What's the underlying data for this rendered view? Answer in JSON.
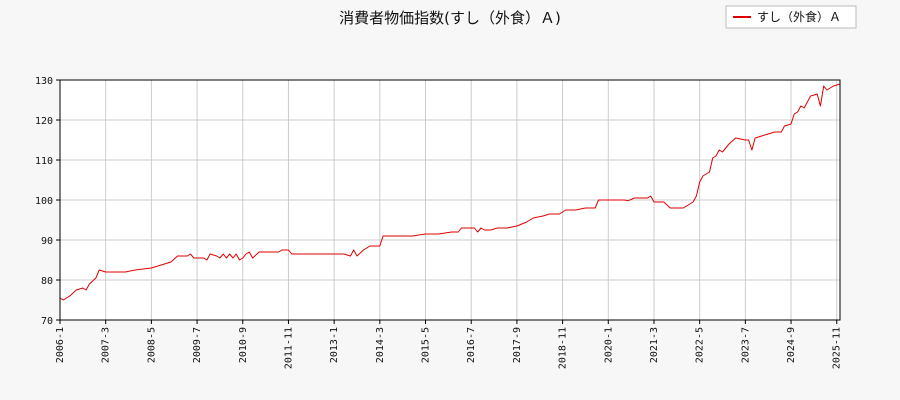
{
  "chart_data": {
    "type": "line",
    "title": "消費者物価指数(すし（外食）Ａ)",
    "xlabel": "",
    "ylabel": "",
    "ylim": [
      70,
      130
    ],
    "xlim": [
      "2006-01",
      "2025-12"
    ],
    "grid": true,
    "legend_position": "top-right",
    "y_ticks": [
      70,
      80,
      90,
      100,
      110,
      120,
      130
    ],
    "x_ticks": [
      "2006-1",
      "2007-3",
      "2008-5",
      "2009-7",
      "2010-9",
      "2011-11",
      "2013-1",
      "2014-3",
      "2015-5",
      "2016-7",
      "2017-9",
      "2018-11",
      "2020-1",
      "2021-3",
      "2022-5",
      "2023-7",
      "2024-9",
      "2025-11"
    ],
    "series": [
      {
        "name": "すし（外食）Ａ",
        "color": "#e00000",
        "points": [
          [
            "2006-01",
            75.5
          ],
          [
            "2006-02",
            75.0
          ],
          [
            "2006-04",
            76.0
          ],
          [
            "2006-06",
            77.5
          ],
          [
            "2006-08",
            78.0
          ],
          [
            "2006-09",
            77.5
          ],
          [
            "2006-10",
            79.0
          ],
          [
            "2006-12",
            80.5
          ],
          [
            "2007-01",
            82.5
          ],
          [
            "2007-03",
            82.0
          ],
          [
            "2007-06",
            82.0
          ],
          [
            "2007-09",
            82.0
          ],
          [
            "2007-12",
            82.5
          ],
          [
            "2008-05",
            83.0
          ],
          [
            "2008-07",
            83.5
          ],
          [
            "2008-09",
            84.0
          ],
          [
            "2008-11",
            84.5
          ],
          [
            "2009-01",
            86.0
          ],
          [
            "2009-04",
            86.0
          ],
          [
            "2009-05",
            86.5
          ],
          [
            "2009-06",
            85.5
          ],
          [
            "2009-07",
            85.5
          ],
          [
            "2009-09",
            85.5
          ],
          [
            "2009-10",
            85.0
          ],
          [
            "2009-11",
            86.5
          ],
          [
            "2010-01",
            86.0
          ],
          [
            "2010-02",
            85.5
          ],
          [
            "2010-03",
            86.5
          ],
          [
            "2010-04",
            85.5
          ],
          [
            "2010-05",
            86.5
          ],
          [
            "2010-06",
            85.5
          ],
          [
            "2010-07",
            86.5
          ],
          [
            "2010-08",
            85.0
          ],
          [
            "2010-09",
            85.5
          ],
          [
            "2010-10",
            86.5
          ],
          [
            "2010-11",
            87.0
          ],
          [
            "2010-12",
            85.5
          ],
          [
            "2011-02",
            87.0
          ],
          [
            "2011-05",
            87.0
          ],
          [
            "2011-08",
            87.0
          ],
          [
            "2011-09",
            87.5
          ],
          [
            "2011-11",
            87.5
          ],
          [
            "2011-12",
            86.5
          ],
          [
            "2012-04",
            86.5
          ],
          [
            "2012-08",
            86.5
          ],
          [
            "2013-01",
            86.5
          ],
          [
            "2013-04",
            86.5
          ],
          [
            "2013-06",
            86.0
          ],
          [
            "2013-07",
            87.5
          ],
          [
            "2013-08",
            86.0
          ],
          [
            "2013-10",
            87.5
          ],
          [
            "2013-12",
            88.5
          ],
          [
            "2014-03",
            88.5
          ],
          [
            "2014-04",
            91.0
          ],
          [
            "2014-09",
            91.0
          ],
          [
            "2015-01",
            91.0
          ],
          [
            "2015-05",
            91.5
          ],
          [
            "2015-09",
            91.5
          ],
          [
            "2016-01",
            92.0
          ],
          [
            "2016-03",
            92.0
          ],
          [
            "2016-04",
            93.0
          ],
          [
            "2016-08",
            93.0
          ],
          [
            "2016-09",
            92.0
          ],
          [
            "2016-10",
            93.0
          ],
          [
            "2016-11",
            92.5
          ],
          [
            "2017-01",
            92.5
          ],
          [
            "2017-03",
            93.0
          ],
          [
            "2017-06",
            93.0
          ],
          [
            "2017-09",
            93.5
          ],
          [
            "2017-12",
            94.5
          ],
          [
            "2018-02",
            95.5
          ],
          [
            "2018-05",
            96.0
          ],
          [
            "2018-07",
            96.5
          ],
          [
            "2018-10",
            96.5
          ],
          [
            "2018-12",
            97.5
          ],
          [
            "2019-03",
            97.5
          ],
          [
            "2019-06",
            98.0
          ],
          [
            "2019-09",
            98.0
          ],
          [
            "2019-10",
            100.0
          ],
          [
            "2020-01",
            100.0
          ],
          [
            "2020-06",
            100.0
          ],
          [
            "2020-07",
            99.8
          ],
          [
            "2020-09",
            100.5
          ],
          [
            "2021-01",
            100.5
          ],
          [
            "2021-02",
            101.0
          ],
          [
            "2021-03",
            99.5
          ],
          [
            "2021-06",
            99.5
          ],
          [
            "2021-08",
            98.0
          ],
          [
            "2021-12",
            98.0
          ],
          [
            "2022-01",
            98.5
          ],
          [
            "2022-03",
            99.5
          ],
          [
            "2022-04",
            101.0
          ],
          [
            "2022-05",
            104.5
          ],
          [
            "2022-06",
            106.0
          ],
          [
            "2022-08",
            107.0
          ],
          [
            "2022-09",
            110.5
          ],
          [
            "2022-10",
            111.0
          ],
          [
            "2022-11",
            112.5
          ],
          [
            "2022-12",
            112.0
          ],
          [
            "2023-02",
            114.0
          ],
          [
            "2023-04",
            115.5
          ],
          [
            "2023-07",
            115.0
          ],
          [
            "2023-08",
            115.0
          ],
          [
            "2023-09",
            112.5
          ],
          [
            "2023-10",
            115.5
          ],
          [
            "2023-12",
            116.0
          ],
          [
            "2024-02",
            116.5
          ],
          [
            "2024-04",
            117.0
          ],
          [
            "2024-06",
            117.0
          ],
          [
            "2024-07",
            118.5
          ],
          [
            "2024-09",
            119.0
          ],
          [
            "2024-10",
            121.5
          ],
          [
            "2024-11",
            122.0
          ],
          [
            "2024-12",
            123.5
          ],
          [
            "2025-01",
            123.0
          ],
          [
            "2025-03",
            126.0
          ],
          [
            "2025-05",
            126.5
          ],
          [
            "2025-06",
            123.5
          ],
          [
            "2025-07",
            128.5
          ],
          [
            "2025-08",
            127.5
          ],
          [
            "2025-10",
            128.5
          ],
          [
            "2025-12",
            129.0
          ]
        ]
      }
    ]
  }
}
